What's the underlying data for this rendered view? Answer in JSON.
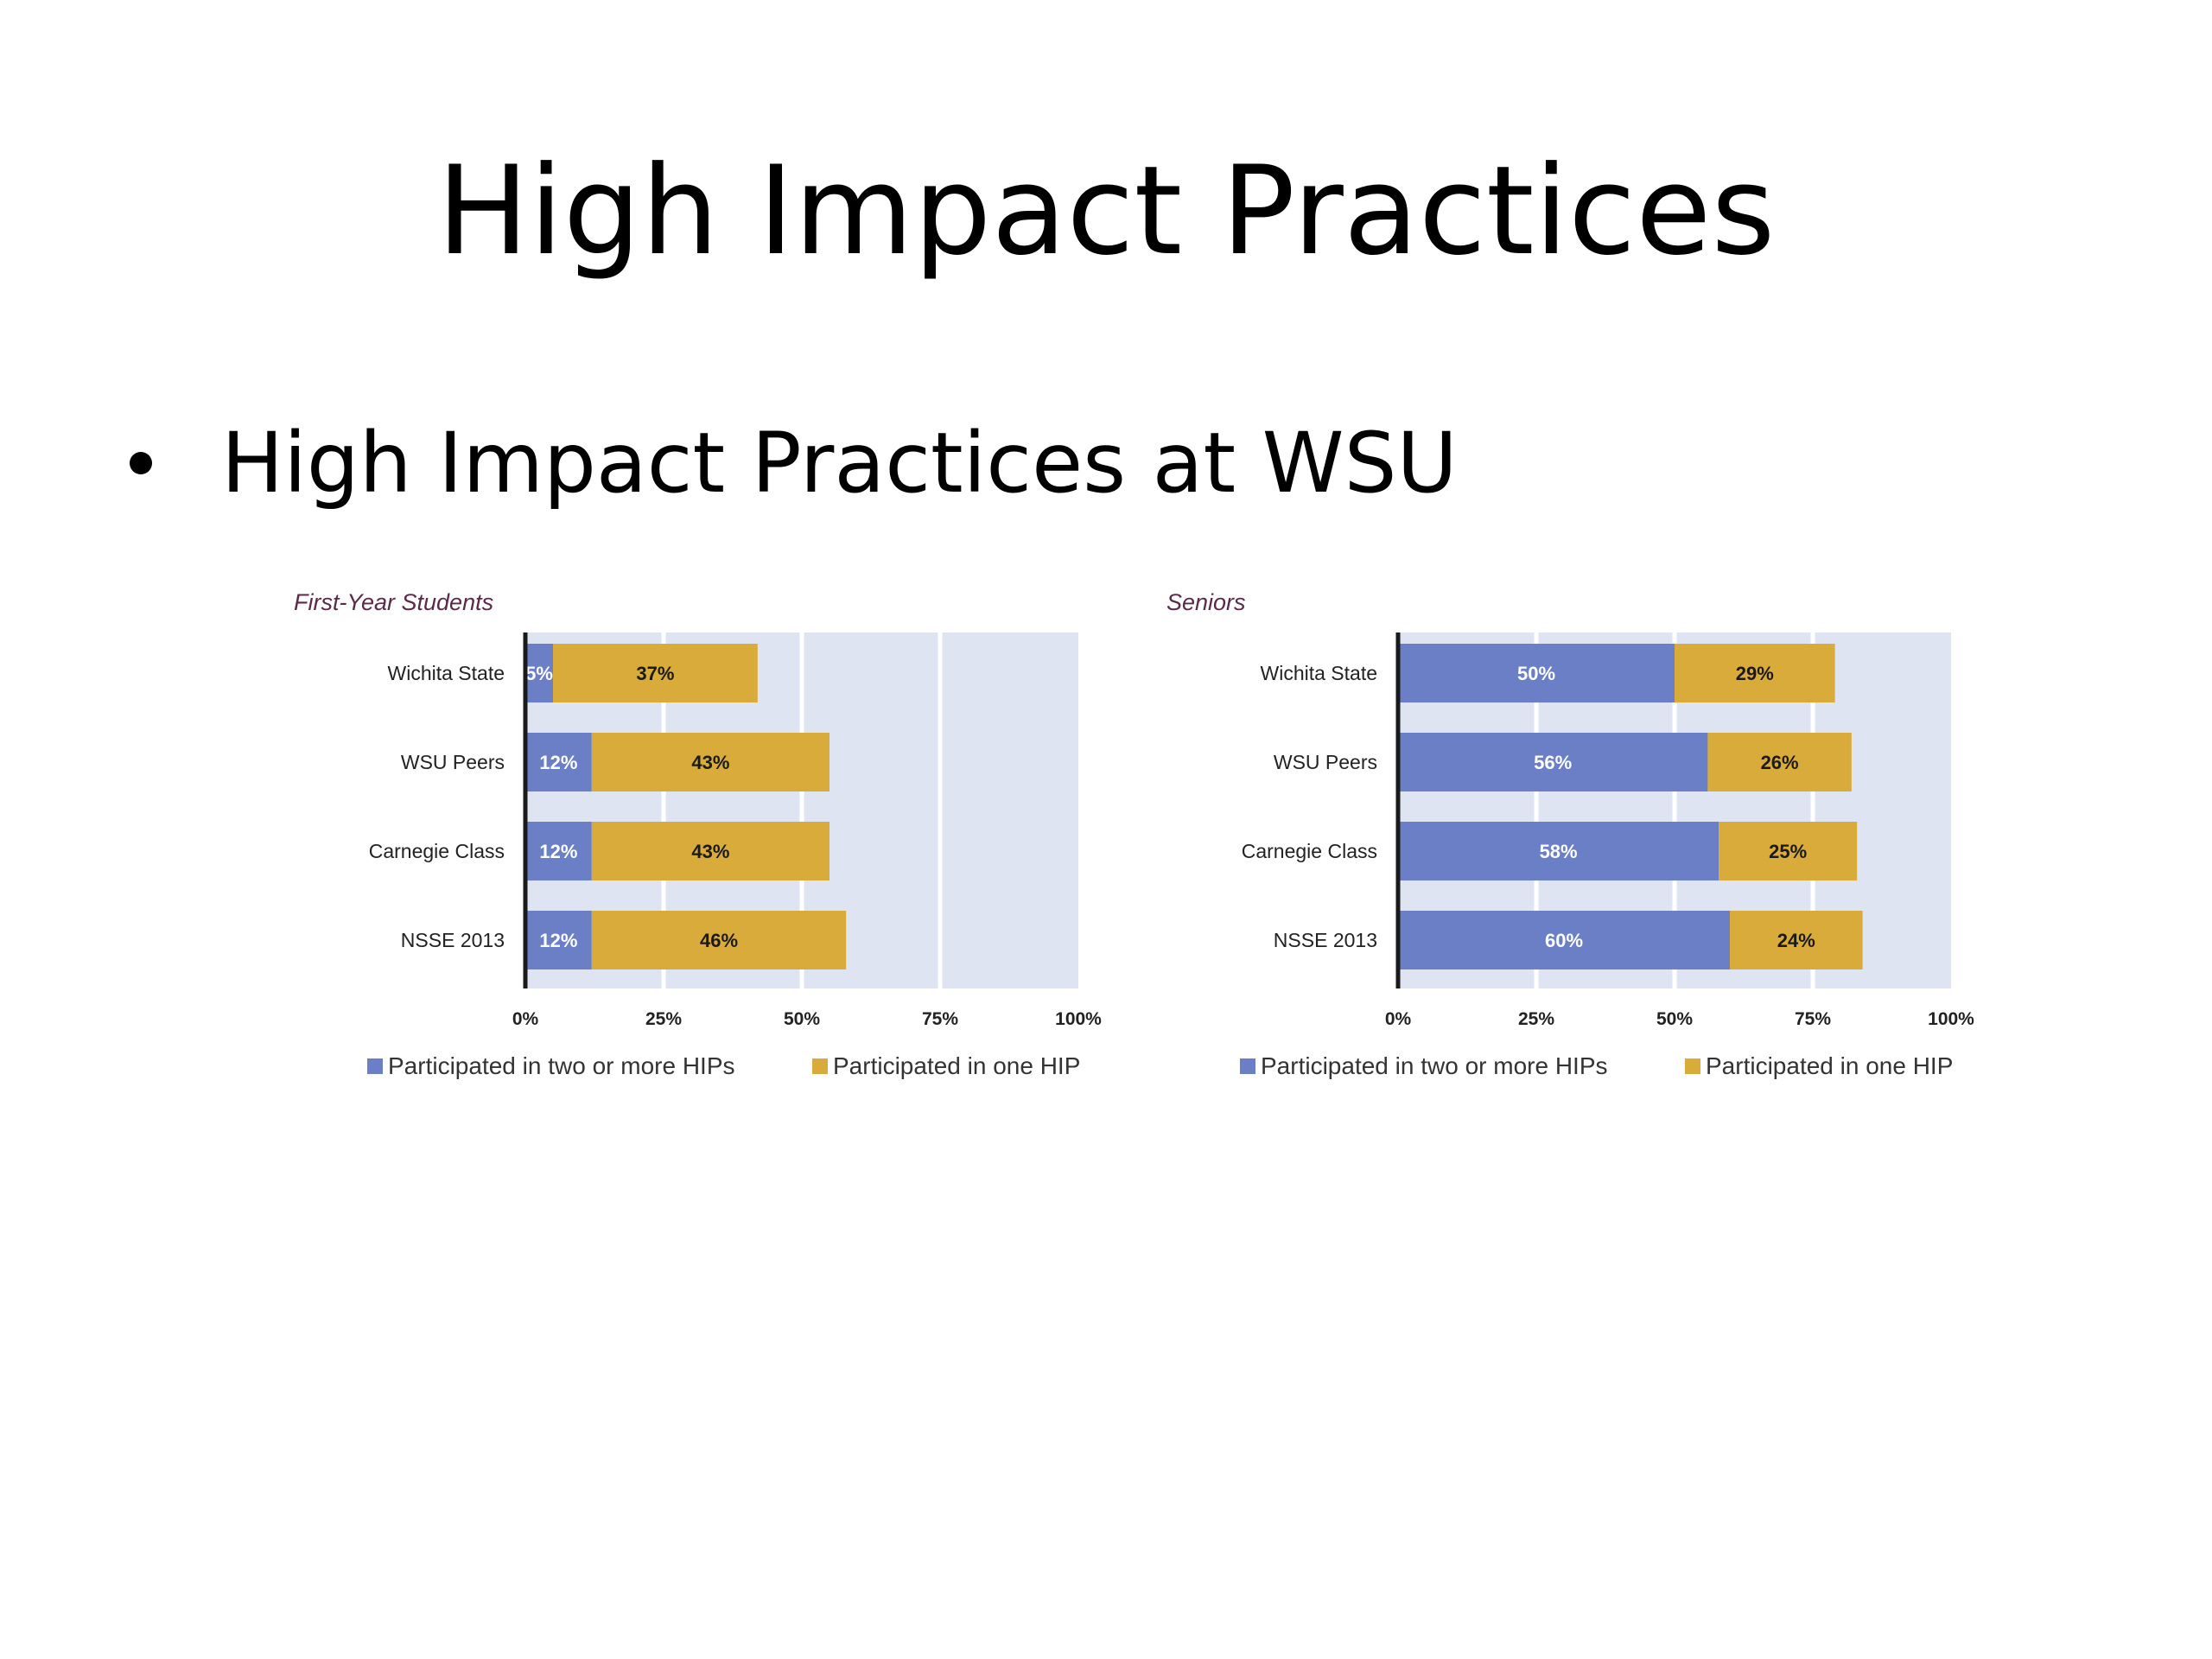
{
  "slide": {
    "title": "High Impact Practices",
    "bullet": "High Impact Practices at WSU"
  },
  "colors": {
    "two_or_more": "#6b7fc6",
    "one": "#d8ab3a",
    "plot_bg": "#dfe4f3",
    "axis": "#1a1a1a"
  },
  "chart_data": [
    {
      "type": "bar",
      "orientation": "horizontal",
      "stacked": true,
      "title": "First-Year Students",
      "categories": [
        "Wichita State",
        "WSU Peers",
        "Carnegie Class",
        "NSSE 2013"
      ],
      "series": [
        {
          "name": "Participated in two or more HIPs",
          "values": [
            5,
            12,
            12,
            12
          ],
          "labels": [
            "5%",
            "12%",
            "12%",
            "12%"
          ]
        },
        {
          "name": "Participated in one HIP",
          "values": [
            37,
            43,
            43,
            46
          ],
          "labels": [
            "37%",
            "43%",
            "43%",
            "46%"
          ]
        }
      ],
      "xlim": [
        0,
        100
      ],
      "xticks": [
        "0%",
        "25%",
        "50%",
        "75%",
        "100%"
      ],
      "grid": true,
      "legend": "bottom"
    },
    {
      "type": "bar",
      "orientation": "horizontal",
      "stacked": true,
      "title": "Seniors",
      "categories": [
        "Wichita State",
        "WSU Peers",
        "Carnegie Class",
        "NSSE 2013"
      ],
      "series": [
        {
          "name": "Participated in two or more HIPs",
          "values": [
            50,
            56,
            58,
            60
          ],
          "labels": [
            "50%",
            "56%",
            "58%",
            "60%"
          ]
        },
        {
          "name": "Participated in one HIP",
          "values": [
            29,
            26,
            25,
            24
          ],
          "labels": [
            "29%",
            "26%",
            "25%",
            "24%"
          ]
        }
      ],
      "xlim": [
        0,
        100
      ],
      "xticks": [
        "0%",
        "25%",
        "50%",
        "75%",
        "100%"
      ],
      "grid": true,
      "legend": "bottom"
    }
  ]
}
